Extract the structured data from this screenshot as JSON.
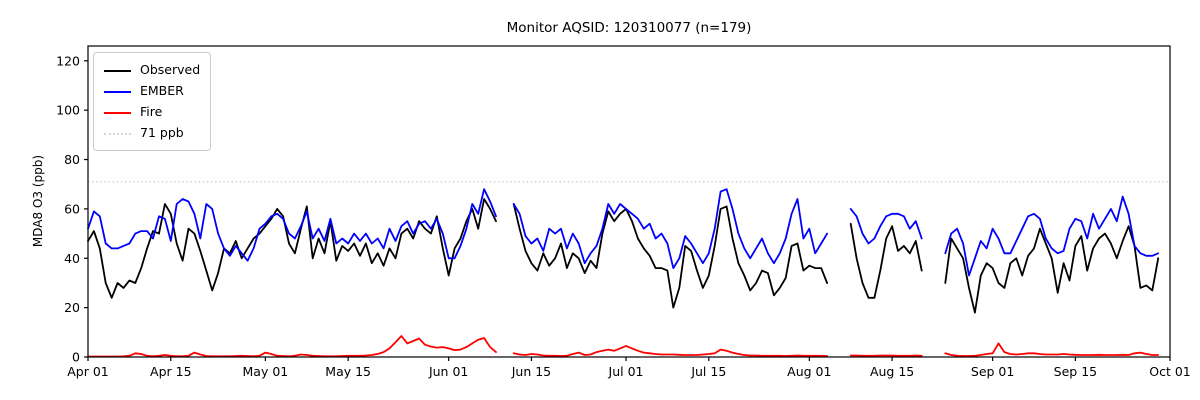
{
  "chart_data": {
    "type": "line",
    "title": "Monitor AQSID: 120310077 (n=179)",
    "xlabel": "",
    "ylabel": "MDA8 O3 (ppb)",
    "ylim": [
      0,
      126
    ],
    "x_start_label": "Apr 01",
    "x_end_label": "Oct 01",
    "x_range_days": 183,
    "grid": false,
    "yticks": [
      0,
      20,
      40,
      60,
      80,
      100,
      120
    ],
    "xticks": [
      {
        "label": "Apr 01",
        "day": 0
      },
      {
        "label": "Apr 15",
        "day": 14
      },
      {
        "label": "May 01",
        "day": 30
      },
      {
        "label": "May 15",
        "day": 44
      },
      {
        "label": "Jun 01",
        "day": 61
      },
      {
        "label": "Jun 15",
        "day": 75
      },
      {
        "label": "Jul 01",
        "day": 91
      },
      {
        "label": "Jul 15",
        "day": 105
      },
      {
        "label": "Aug 01",
        "day": 122
      },
      {
        "label": "Aug 15",
        "day": 136
      },
      {
        "label": "Sep 01",
        "day": 153
      },
      {
        "label": "Sep 15",
        "day": 167
      },
      {
        "label": "Oct 01",
        "day": 183
      }
    ],
    "threshold": {
      "value": 71,
      "label": "71 ppb",
      "color": "#d2d2d2",
      "line_style": "dotted"
    },
    "legend": {
      "position": "upper left",
      "items": [
        {
          "label": "Observed",
          "color": "#000000",
          "line_style": "solid"
        },
        {
          "label": "EMBER",
          "color": "#0000ff",
          "line_style": "solid"
        },
        {
          "label": "Fire",
          "color": "#ff0000",
          "line_style": "solid"
        },
        {
          "label": "71 ppb",
          "color": "#d2d2d2",
          "line_style": "dotted"
        }
      ]
    },
    "series": [
      {
        "name": "Observed",
        "color": "#000000",
        "values": [
          47,
          51,
          44,
          30,
          24,
          30,
          28,
          31,
          30,
          36,
          44,
          51,
          50,
          62,
          58,
          46,
          39,
          52,
          50,
          43,
          35,
          27,
          34,
          44,
          42,
          47,
          40,
          44,
          48,
          50,
          53,
          56,
          60,
          57,
          46,
          42,
          52,
          61,
          40,
          48,
          42,
          55,
          39,
          45,
          43,
          46,
          41,
          46,
          38,
          42,
          37,
          44,
          40,
          50,
          52,
          48,
          55,
          52,
          50,
          57,
          44,
          33,
          44,
          48,
          55,
          60,
          52,
          64,
          60,
          55,
          null,
          null,
          62,
          52,
          43,
          38,
          35,
          42,
          37,
          40,
          46,
          36,
          42,
          40,
          34,
          39,
          36,
          50,
          59,
          55,
          58,
          60,
          55,
          48,
          44,
          41,
          36,
          36,
          35,
          20,
          28,
          45,
          43,
          35,
          28,
          33,
          45,
          60,
          61,
          48,
          38,
          33,
          27,
          30,
          35,
          34,
          25,
          28,
          32,
          45,
          46,
          35,
          37,
          36,
          36,
          30,
          null,
          null,
          null,
          54,
          40,
          30,
          24,
          24,
          35,
          48,
          53,
          43,
          45,
          42,
          47,
          35,
          null,
          null,
          null,
          30,
          48,
          44,
          40,
          28,
          18,
          33,
          38,
          36,
          30,
          28,
          38,
          40,
          33,
          41,
          44,
          52,
          46,
          40,
          26,
          38,
          31,
          45,
          49,
          35,
          44,
          48,
          50,
          46,
          40,
          47,
          53,
          45,
          28,
          29,
          27,
          40,
          null
        ]
      },
      {
        "name": "EMBER",
        "color": "#0000ff",
        "values": [
          52,
          59,
          57,
          46,
          44,
          44,
          45,
          46,
          50,
          51,
          51,
          48,
          57,
          56,
          47,
          62,
          64,
          63,
          58,
          48,
          62,
          60,
          50,
          44,
          41,
          45,
          42,
          39,
          44,
          52,
          54,
          57,
          58,
          56,
          50,
          48,
          53,
          59,
          48,
          52,
          47,
          56,
          46,
          48,
          46,
          50,
          47,
          50,
          46,
          48,
          44,
          52,
          47,
          53,
          55,
          50,
          54,
          55,
          52,
          56,
          50,
          40,
          40,
          45,
          52,
          62,
          58,
          68,
          63,
          57,
          null,
          null,
          62,
          58,
          49,
          46,
          48,
          43,
          52,
          50,
          52,
          44,
          50,
          46,
          38,
          42,
          45,
          52,
          62,
          58,
          62,
          60,
          58,
          56,
          52,
          54,
          48,
          50,
          46,
          36,
          40,
          49,
          46,
          42,
          38,
          42,
          52,
          67,
          68,
          60,
          50,
          44,
          40,
          44,
          48,
          42,
          38,
          42,
          48,
          58,
          64,
          48,
          52,
          42,
          46,
          50,
          null,
          null,
          null,
          60,
          57,
          50,
          46,
          48,
          53,
          57,
          58,
          58,
          57,
          52,
          55,
          48,
          null,
          null,
          null,
          42,
          50,
          52,
          46,
          33,
          40,
          47,
          44,
          52,
          48,
          42,
          42,
          47,
          52,
          57,
          58,
          56,
          48,
          44,
          42,
          43,
          52,
          56,
          55,
          48,
          58,
          52,
          56,
          60,
          55,
          65,
          58,
          45,
          42,
          41,
          41,
          42,
          null
        ]
      },
      {
        "name": "Fire",
        "color": "#ff0000",
        "values": [
          0.2,
          0.2,
          0.2,
          0.2,
          0.2,
          0.2,
          0.3,
          0.5,
          1.5,
          1.2,
          0.5,
          0.3,
          0.5,
          0.8,
          0.5,
          0.3,
          0.3,
          0.5,
          1.8,
          1.0,
          0.4,
          0.3,
          0.3,
          0.3,
          0.3,
          0.4,
          0.5,
          0.4,
          0.3,
          0.5,
          1.8,
          1.2,
          0.5,
          0.4,
          0.3,
          0.5,
          1.0,
          0.8,
          0.5,
          0.4,
          0.3,
          0.3,
          0.3,
          0.4,
          0.5,
          0.5,
          0.5,
          0.6,
          0.8,
          1.2,
          2.0,
          3.5,
          6.0,
          8.5,
          5.5,
          6.5,
          7.5,
          5.0,
          4.2,
          3.8,
          4.0,
          3.5,
          2.8,
          3.0,
          4.0,
          5.5,
          7.0,
          7.7,
          4.0,
          2.0,
          null,
          null,
          1.5,
          1.0,
          0.8,
          1.2,
          1.0,
          0.6,
          0.5,
          0.5,
          0.4,
          0.5,
          1.2,
          1.8,
          0.8,
          1.0,
          2.0,
          2.5,
          3.0,
          2.5,
          3.5,
          4.5,
          3.5,
          2.5,
          1.8,
          1.5,
          1.2,
          1.0,
          1.0,
          1.0,
          0.9,
          0.8,
          0.8,
          0.8,
          1.0,
          1.2,
          1.5,
          3.0,
          2.5,
          1.8,
          1.2,
          0.8,
          0.6,
          0.6,
          0.5,
          0.5,
          0.5,
          0.5,
          0.4,
          0.5,
          0.6,
          0.5,
          0.5,
          0.5,
          0.5,
          0.4,
          null,
          null,
          null,
          0.6,
          0.6,
          0.5,
          0.5,
          0.5,
          0.6,
          0.6,
          0.6,
          0.5,
          0.5,
          0.5,
          0.6,
          0.5,
          null,
          null,
          null,
          1.5,
          0.8,
          0.5,
          0.4,
          0.4,
          0.5,
          0.8,
          1.2,
          1.5,
          5.5,
          2.0,
          1.2,
          1.0,
          1.2,
          1.5,
          1.5,
          1.2,
          1.0,
          1.0,
          1.0,
          1.2,
          1.0,
          0.9,
          0.8,
          0.8,
          0.8,
          0.9,
          0.8,
          0.8,
          0.8,
          0.9,
          0.8,
          1.5,
          1.8,
          1.2,
          0.8,
          0.8,
          null
        ]
      }
    ]
  }
}
